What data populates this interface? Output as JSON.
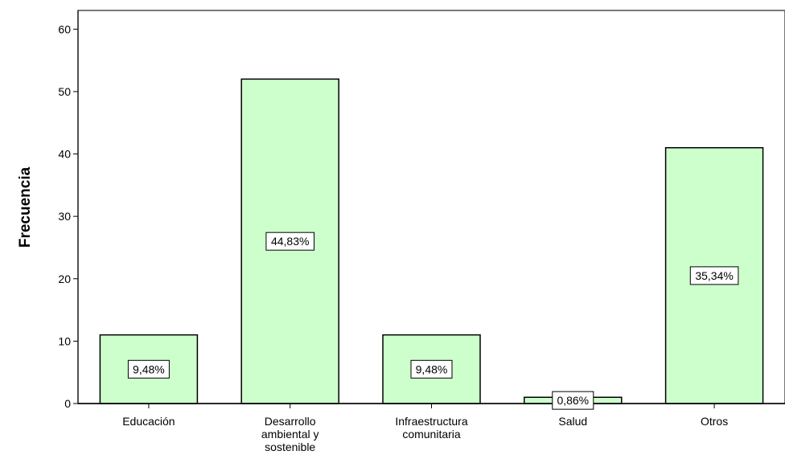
{
  "chart_data": {
    "type": "bar",
    "title": "",
    "xlabel": "",
    "ylabel": "Frecuencia",
    "ylim": [
      0,
      60
    ],
    "yticks": [
      0,
      10,
      20,
      30,
      40,
      50,
      60
    ],
    "categories": [
      [
        "Educación"
      ],
      [
        "Desarrollo",
        "ambiental y",
        "sostenible"
      ],
      [
        "Infraestructura",
        "comunitaria"
      ],
      [
        "Salud"
      ],
      [
        "Otros"
      ]
    ],
    "values": [
      11,
      52,
      11,
      1,
      41
    ],
    "data_labels": [
      "9,48%",
      "44,83%",
      "9,48%",
      "0,86%",
      "35,34%"
    ],
    "colors": {
      "bar_fill": "#ccffcc",
      "bar_stroke": "#000000",
      "axis": "#000000"
    }
  }
}
